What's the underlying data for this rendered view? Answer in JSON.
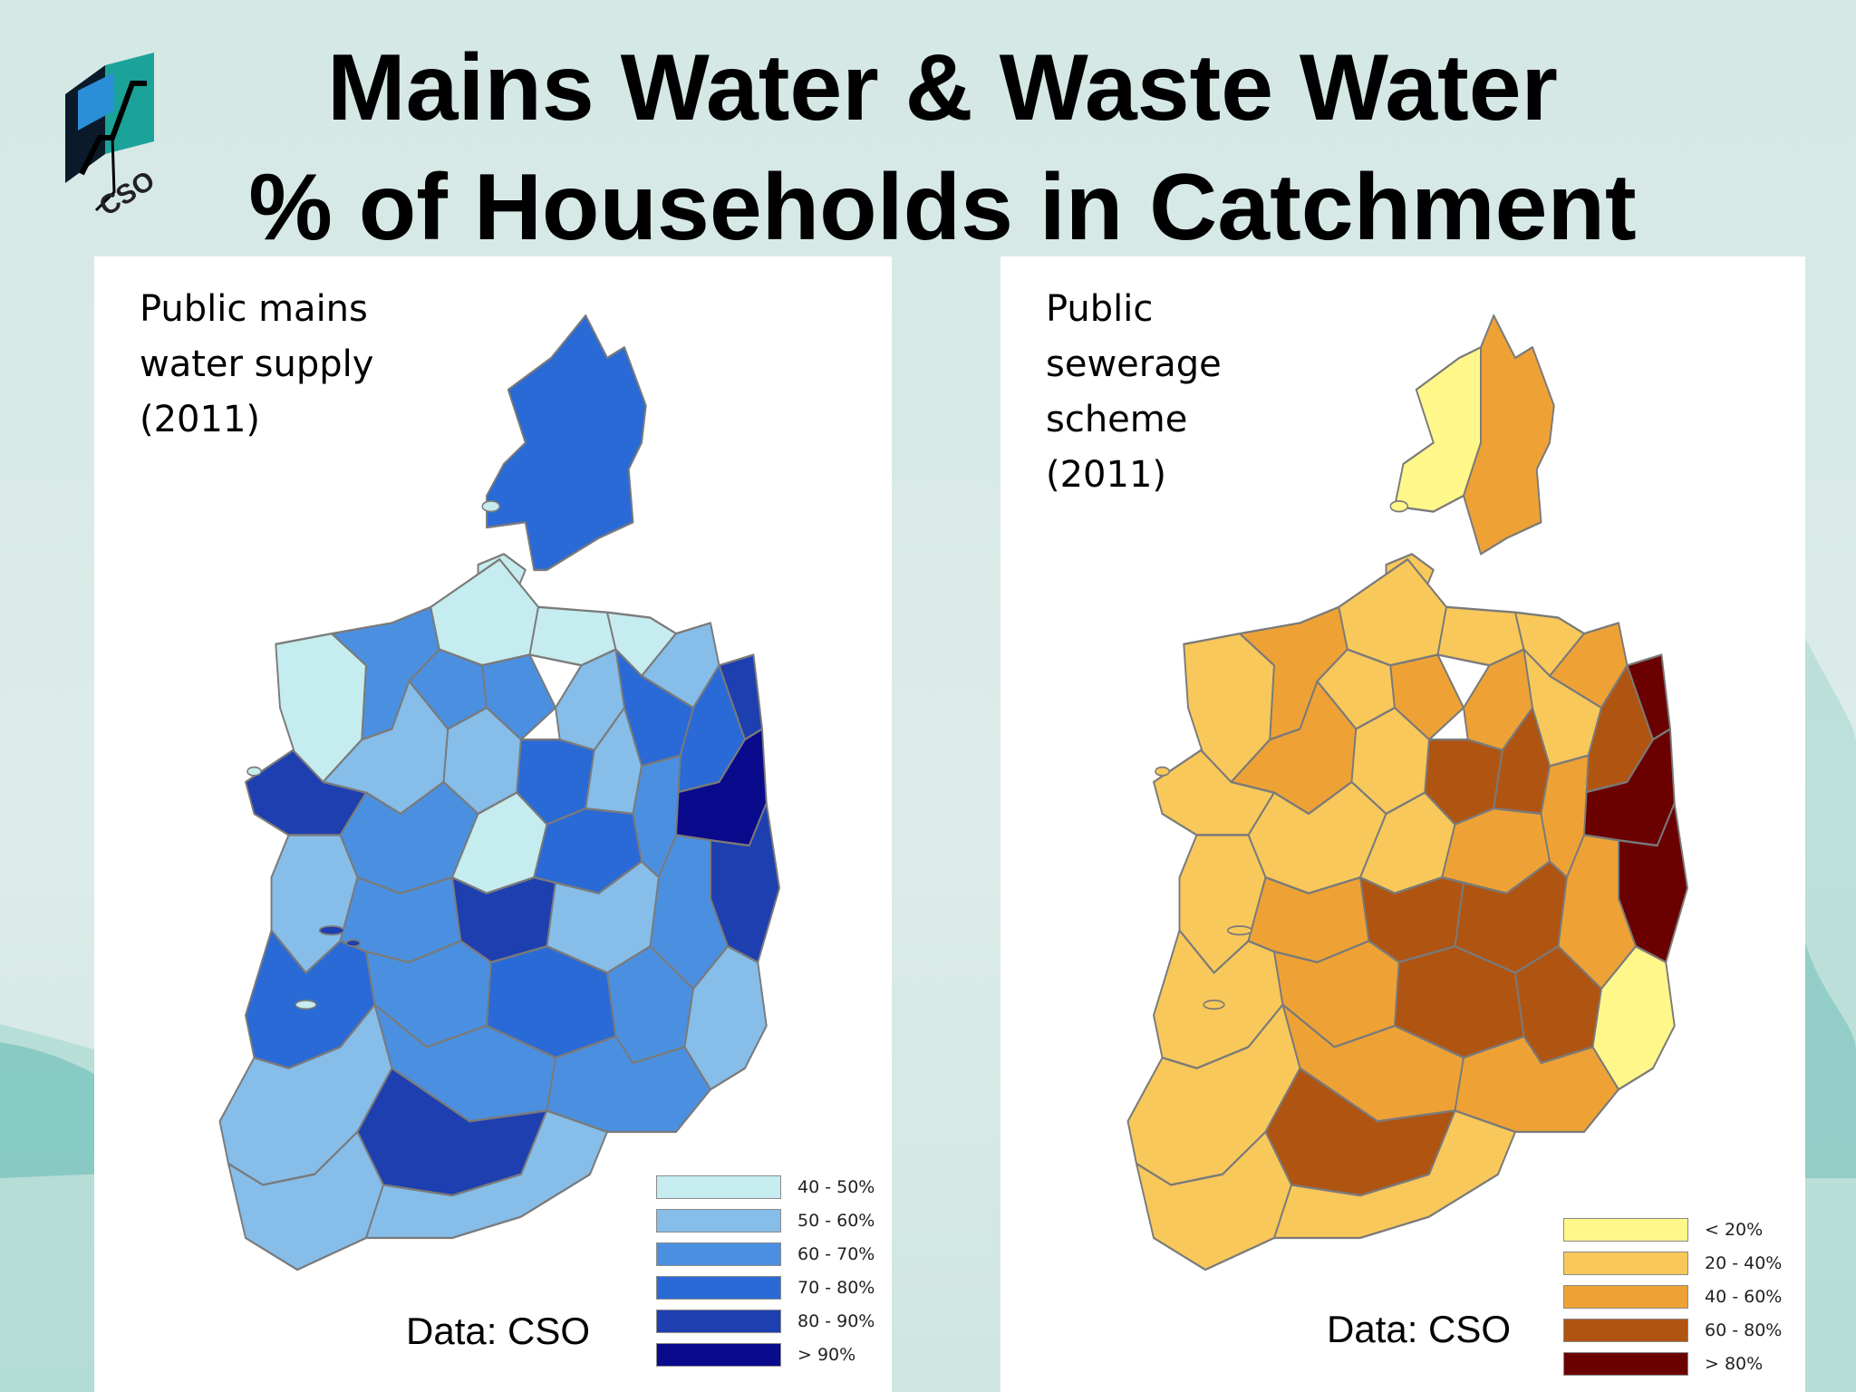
{
  "title": {
    "line1": "Mains Water & Waste Water",
    "line2": "% of Households in Catchment"
  },
  "logo": {
    "text": "CSO",
    "icon": "cso-logo-icon"
  },
  "colors": {
    "background": "#d9ebe8",
    "county_border": "#7a7a7a",
    "panel": "#ffffff"
  },
  "maps": [
    {
      "id": "mains-water",
      "label_lines": [
        "Public mains",
        "water supply",
        "(2011)"
      ],
      "source": "Data: CSO",
      "legend": [
        {
          "label": "40 - 50%",
          "color": "#c5ecee"
        },
        {
          "label": "50 - 60%",
          "color": "#86bde9"
        },
        {
          "label": "60 - 70%",
          "color": "#4b90e0"
        },
        {
          "label": "70 - 80%",
          "color": "#2a6ad6"
        },
        {
          "label": "80 - 90%",
          "color": "#1e3fb0"
        },
        {
          "label": "> 90%",
          "color": "#0a0a8c"
        }
      ]
    },
    {
      "id": "sewerage",
      "label_lines": [
        "Public",
        "sewerage",
        "scheme",
        "(2011)"
      ],
      "source": "Data: CSO",
      "legend": [
        {
          "label": "< 20%",
          "color": "#fff78a"
        },
        {
          "label": "20 - 40%",
          "color": "#f8c85a"
        },
        {
          "label": "40 - 60%",
          "color": "#eea235"
        },
        {
          "label": "60 - 80%",
          "color": "#b05412"
        },
        {
          "label": "> 80%",
          "color": "#6b0000"
        }
      ]
    }
  ]
}
